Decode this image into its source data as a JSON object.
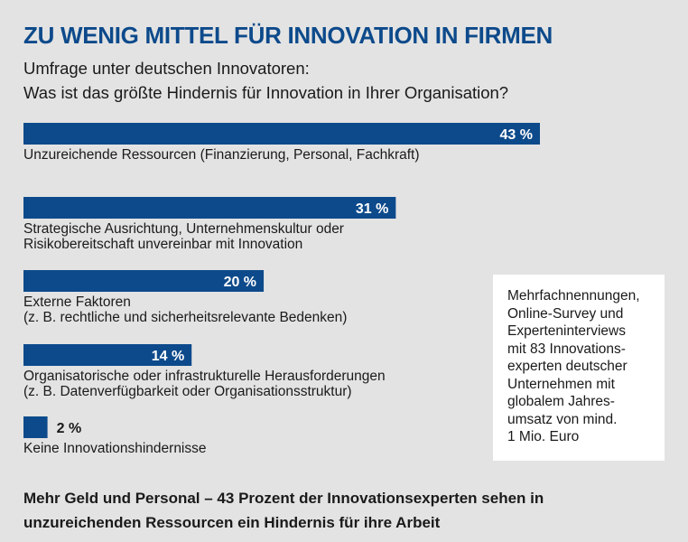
{
  "header": {
    "title": "ZU WENIG MITTEL FÜR INNOVATION IN FIRMEN",
    "subtitle_lines": [
      "Umfrage unter deutschen Innovatoren:",
      "Was ist das größte Hindernis für Innovation in Ihrer Organisation?"
    ]
  },
  "chart_data": {
    "type": "bar",
    "orientation": "horizontal",
    "unit": "%",
    "bar_color": "#0d4a8b",
    "categories": [
      [
        "Unzureichende Ressourcen (Finanzierung, Personal, Fachkraft)"
      ],
      [
        "Strategische Ausrichtung, Unternehmenskultur oder",
        "Risikobereitschaft unvereinbar mit Innovation"
      ],
      [
        "Externe Faktoren",
        "(z. B. rechtliche und sicherheitsrelevante Bedenken)"
      ],
      [
        "Organisatorische oder infrastrukturelle Herausforderungen",
        "(z. B. Datenverfügbarkeit oder Organisationsstruktur)"
      ],
      [
        "Keine Innovationshindernisse"
      ]
    ],
    "values": [
      43,
      31,
      20,
      14,
      2
    ],
    "value_labels": [
      "43 %",
      "31 %",
      "20 %",
      "14 %",
      "2 %"
    ]
  },
  "note": {
    "lines": [
      "Mehrfachnennungen,",
      "Online-Survey und",
      "Experteninterviews",
      "mit 83 Innovations-",
      "experten deutscher",
      "Unternehmen mit",
      "globalem Jahres-",
      "umsatz von mind.",
      "1 Mio. Euro"
    ]
  },
  "footer": {
    "lines": [
      "Mehr Geld und Personal – 43 Prozent der Innovationsexperten sehen in",
      "unzureichenden Ressourcen ein Hindernis für ihre Arbeit"
    ]
  }
}
